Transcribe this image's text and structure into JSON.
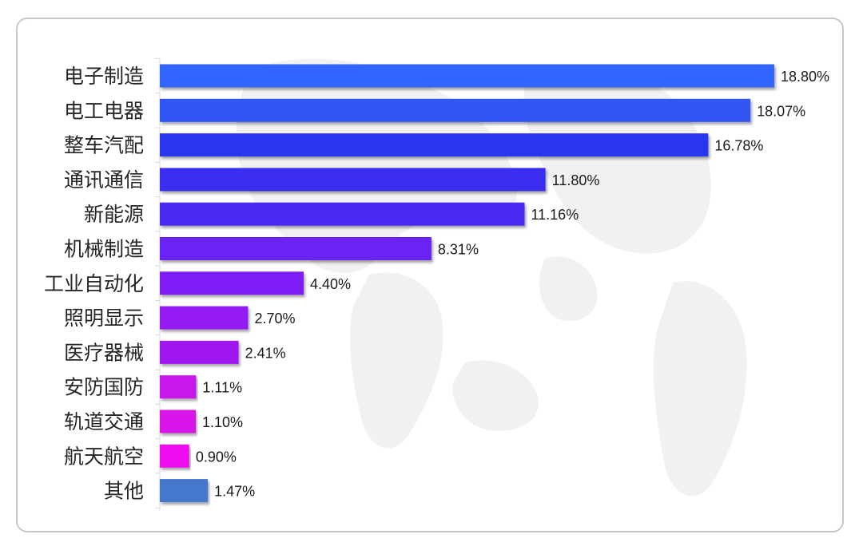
{
  "chart_data": {
    "type": "bar",
    "orientation": "horizontal",
    "categories": [
      "电子制造",
      "电工电器",
      "整车汽配",
      "通讯通信",
      "新能源",
      "机械制造",
      "工业自动化",
      "照明显示",
      "医疗器械",
      "安防国防",
      "轨道交通",
      "航天航空",
      "其他"
    ],
    "values": [
      18.8,
      18.07,
      16.78,
      11.8,
      11.16,
      8.31,
      4.4,
      2.7,
      2.41,
      1.11,
      1.1,
      0.9,
      1.47
    ],
    "value_labels": [
      "18.80%",
      "18.07%",
      "16.78%",
      "11.80%",
      "11.16%",
      "8.31%",
      "4.40%",
      "2.70%",
      "2.41%",
      "1.11%",
      "1.10%",
      "0.90%",
      "1.47%"
    ],
    "colors": [
      "#3366ff",
      "#3355f5",
      "#2a36ee",
      "#3a2df0",
      "#4a2af2",
      "#6a22f5",
      "#7d1ff5",
      "#941cf3",
      "#a018f0",
      "#c813ec",
      "#d912ea",
      "#ee10ee",
      "#4477cc"
    ],
    "title": "",
    "xlabel": "",
    "ylabel": "",
    "xlim": [
      0,
      18.8
    ],
    "grid": false,
    "legend": "none"
  }
}
